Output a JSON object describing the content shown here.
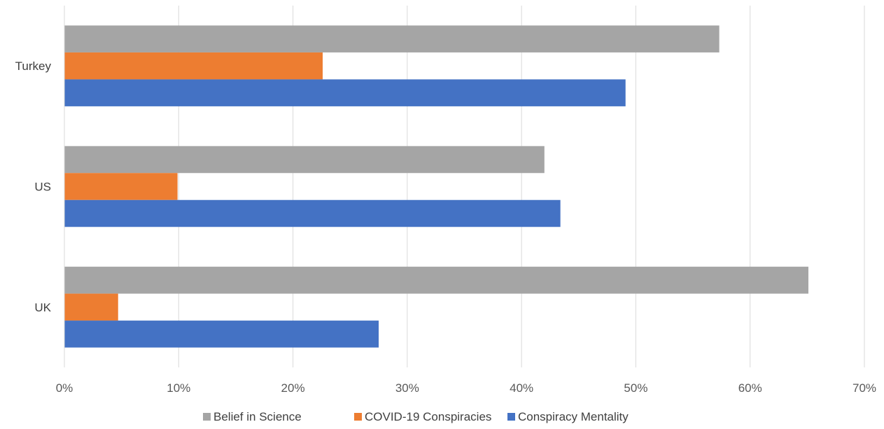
{
  "chart_data": {
    "type": "bar",
    "orientation": "horizontal",
    "categories": [
      "Turkey",
      "US",
      "UK"
    ],
    "series": [
      {
        "name": "Belief in Science",
        "color": "#a5a5a5",
        "values": [
          57.3,
          42.0,
          65.1
        ]
      },
      {
        "name": "COVID-19 Conspiracies",
        "color": "#ed7d31",
        "values": [
          22.6,
          9.9,
          4.7
        ]
      },
      {
        "name": "Conspiracy Mentality",
        "color": "#4472c4",
        "values": [
          49.1,
          43.4,
          27.5
        ]
      }
    ],
    "xlim": [
      0,
      70
    ],
    "x_ticks": [
      "0%",
      "10%",
      "20%",
      "30%",
      "40%",
      "50%",
      "60%",
      "70%"
    ],
    "x_unit": "%",
    "grid": "vertical",
    "legend_position": "bottom",
    "title": "",
    "xlabel": "",
    "ylabel": ""
  }
}
